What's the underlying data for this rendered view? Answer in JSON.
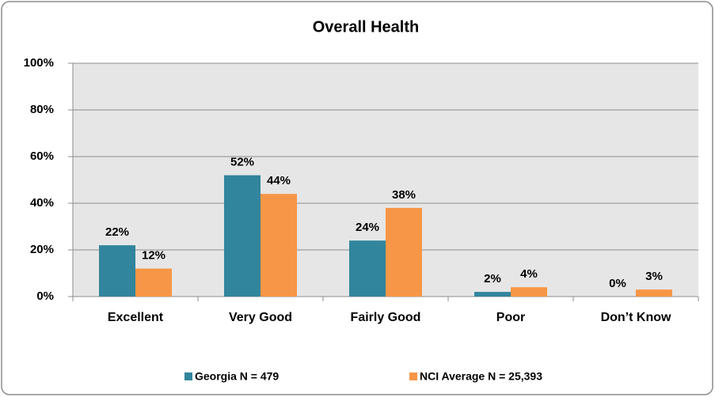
{
  "chart_data": {
    "type": "bar",
    "title": "Overall Health",
    "categories": [
      "Excellent",
      "Very Good",
      "Fairly Good",
      "Poor",
      "Don’t Know"
    ],
    "series": [
      {
        "name": "Georgia N = 479",
        "color": "#31859c",
        "values": [
          22,
          52,
          24,
          2,
          0
        ],
        "value_labels": [
          "22%",
          "52%",
          "24%",
          "2%",
          "0%"
        ]
      },
      {
        "name": "NCI Average N = 25,393",
        "color": "#f79646",
        "values": [
          12,
          44,
          38,
          4,
          3
        ],
        "value_labels": [
          "12%",
          "44%",
          "38%",
          "4%",
          "3%"
        ]
      }
    ],
    "ylim": [
      0,
      100
    ],
    "yticks": [
      {
        "value": 0,
        "label": "0%"
      },
      {
        "value": 20,
        "label": "20%"
      },
      {
        "value": 40,
        "label": "40%"
      },
      {
        "value": 60,
        "label": "60%"
      },
      {
        "value": 80,
        "label": "80%"
      },
      {
        "value": 100,
        "label": "100%"
      }
    ],
    "grid": true,
    "legend": "bottom"
  }
}
